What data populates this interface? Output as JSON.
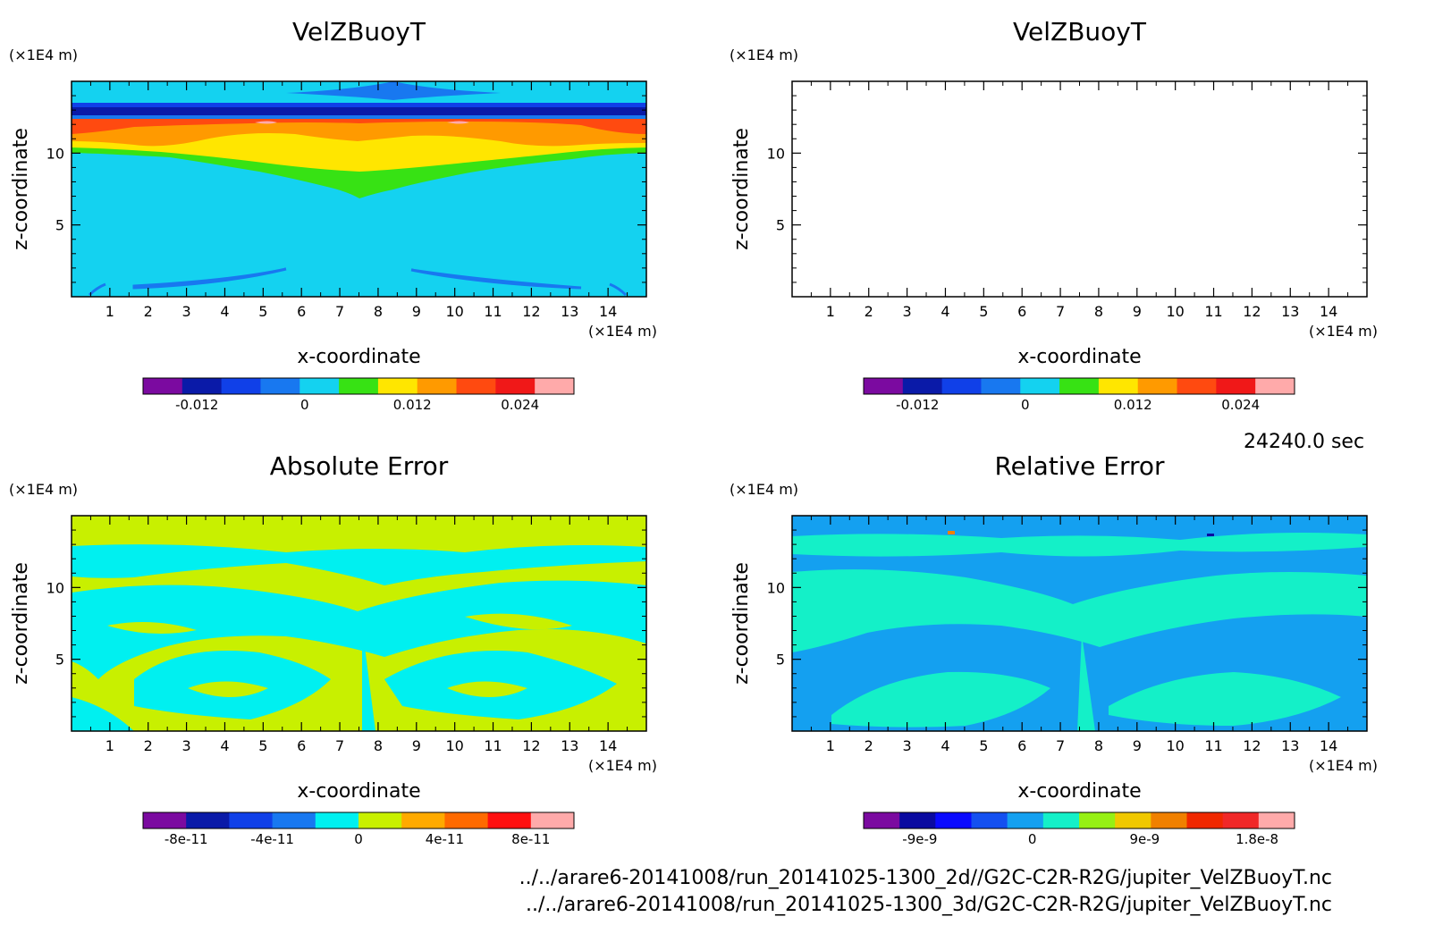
{
  "time_label": "24240.0 sec",
  "file_paths": [
    "../../arare6-20141008/run_20141025-1300_2d//G2C-C2R-R2G/jupiter_VelZBuoyT.nc",
    "../../arare6-20141008/run_20141025-1300_3d/G2C-C2R-R2G/jupiter_VelZBuoyT.nc"
  ],
  "chart_data": [
    {
      "type": "heatmap",
      "title": "VelZBuoyT",
      "xlabel": "x-coordinate",
      "ylabel": "z-coordinate",
      "x_unit": "(×1E4 m)",
      "z_unit": "(×1E4 m)",
      "x_ticks": [
        "1",
        "2",
        "3",
        "4",
        "5",
        "6",
        "7",
        "8",
        "9",
        "10",
        "11",
        "12",
        "13",
        "14"
      ],
      "z_ticks": [
        "5",
        "10"
      ],
      "xlim": [
        0,
        15
      ],
      "zlim": [
        0,
        15
      ],
      "colorbar": {
        "colors": [
          "#7b0aa0",
          "#0a1aa8",
          "#1040e8",
          "#1878f0",
          "#14d2f0",
          "#37e214",
          "#ffe600",
          "#ff9a00",
          "#ff4a10",
          "#f01818",
          "#ffaaaa"
        ],
        "ticks": [
          "-0.012",
          "0",
          "0.012",
          "0.024"
        ],
        "tick_values": [
          -0.012,
          0,
          0.012,
          0.024
        ],
        "range": [
          -0.018,
          0.03
        ]
      }
    },
    {
      "type": "heatmap",
      "title": "VelZBuoyT",
      "xlabel": "x-coordinate",
      "ylabel": "z-coordinate",
      "x_unit": "(×1E4 m)",
      "z_unit": "(×1E4 m)",
      "x_ticks": [
        "1",
        "2",
        "3",
        "4",
        "5",
        "6",
        "7",
        "8",
        "9",
        "10",
        "11",
        "12",
        "13",
        "14"
      ],
      "z_ticks": [
        "5",
        "10"
      ],
      "xlim": [
        0,
        15
      ],
      "zlim": [
        0,
        15
      ],
      "colorbar": {
        "colors": [
          "#7b0aa0",
          "#0a1aa8",
          "#1040e8",
          "#1878f0",
          "#14d2f0",
          "#37e214",
          "#ffe600",
          "#ff9a00",
          "#ff4a10",
          "#f01818",
          "#ffaaaa"
        ],
        "ticks": [
          "-0.012",
          "0",
          "0.012",
          "0.024"
        ],
        "tick_values": [
          -0.012,
          0,
          0.012,
          0.024
        ],
        "range": [
          -0.018,
          0.03
        ]
      }
    },
    {
      "type": "heatmap",
      "title": "Absolute Error",
      "xlabel": "x-coordinate",
      "ylabel": "z-coordinate",
      "x_unit": "(×1E4 m)",
      "z_unit": "(×1E4 m)",
      "x_ticks": [
        "1",
        "2",
        "3",
        "4",
        "5",
        "6",
        "7",
        "8",
        "9",
        "10",
        "11",
        "12",
        "13",
        "14"
      ],
      "z_ticks": [
        "5",
        "10"
      ],
      "xlim": [
        0,
        15
      ],
      "zlim": [
        0,
        15
      ],
      "colorbar": {
        "colors": [
          "#7b0aa0",
          "#0a1aa8",
          "#1040e8",
          "#1878f0",
          "#00f0f0",
          "#c8f000",
          "#ffaa00",
          "#ff6a00",
          "#ff1010",
          "#ffaaaa"
        ],
        "ticks": [
          "-8e-11",
          "-4e-11",
          "0",
          "4e-11",
          "8e-11"
        ],
        "tick_values": [
          -8e-11,
          -4e-11,
          0,
          4e-11,
          8e-11
        ],
        "range": [
          -1e-10,
          1e-10
        ]
      }
    },
    {
      "type": "heatmap",
      "title": "Relative Error",
      "xlabel": "x-coordinate",
      "ylabel": "z-coordinate",
      "x_unit": "(×1E4 m)",
      "z_unit": "(×1E4 m)",
      "x_ticks": [
        "1",
        "2",
        "3",
        "4",
        "5",
        "6",
        "7",
        "8",
        "9",
        "10",
        "11",
        "12",
        "13",
        "14"
      ],
      "z_ticks": [
        "5",
        "10"
      ],
      "xlim": [
        0,
        15
      ],
      "zlim": [
        0,
        15
      ],
      "colorbar": {
        "colors": [
          "#7b0aa0",
          "#0a0aa0",
          "#0a0aff",
          "#1450f0",
          "#14a0f0",
          "#14f0c8",
          "#96f014",
          "#f0c800",
          "#f08000",
          "#f02800",
          "#f02828",
          "#ffaaaa"
        ],
        "ticks": [
          "-9e-9",
          "0",
          "9e-9",
          "1.8e-8"
        ],
        "tick_values": [
          -9e-09,
          0,
          9e-09,
          1.8e-08
        ],
        "range": [
          -1.35e-08,
          2.1e-08
        ]
      }
    }
  ]
}
